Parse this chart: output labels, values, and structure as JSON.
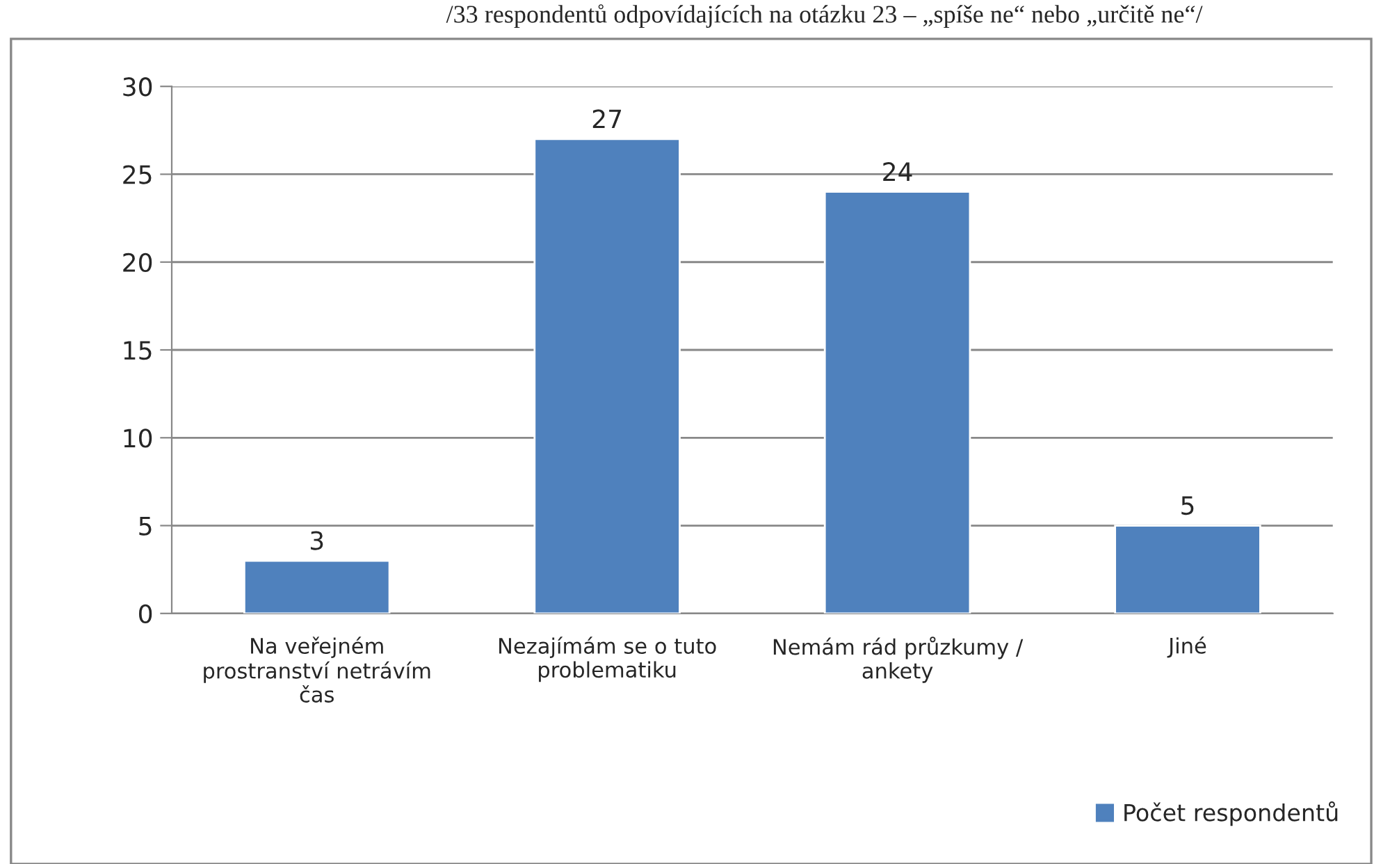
{
  "chart_data": {
    "type": "bar",
    "title": "/33 respondentů odpovídajících na otázku 23 – „spíše ne“ nebo „určitě ne“/",
    "categories": [
      "Na veřejném prostranství netrávím čas",
      "Nezajímám se o tuto problematiku",
      "Nemám rád průzkumy / ankety",
      "Jiné"
    ],
    "series": [
      {
        "name": "Počet respondentů",
        "color": "#4f81bd",
        "values": [
          3,
          27,
          24,
          5
        ]
      }
    ],
    "ylim": [
      0,
      30
    ],
    "yticks": [
      0,
      5,
      10,
      15,
      20,
      25,
      30
    ],
    "grid": "y",
    "data_labels": true,
    "legend": "bottom right"
  }
}
